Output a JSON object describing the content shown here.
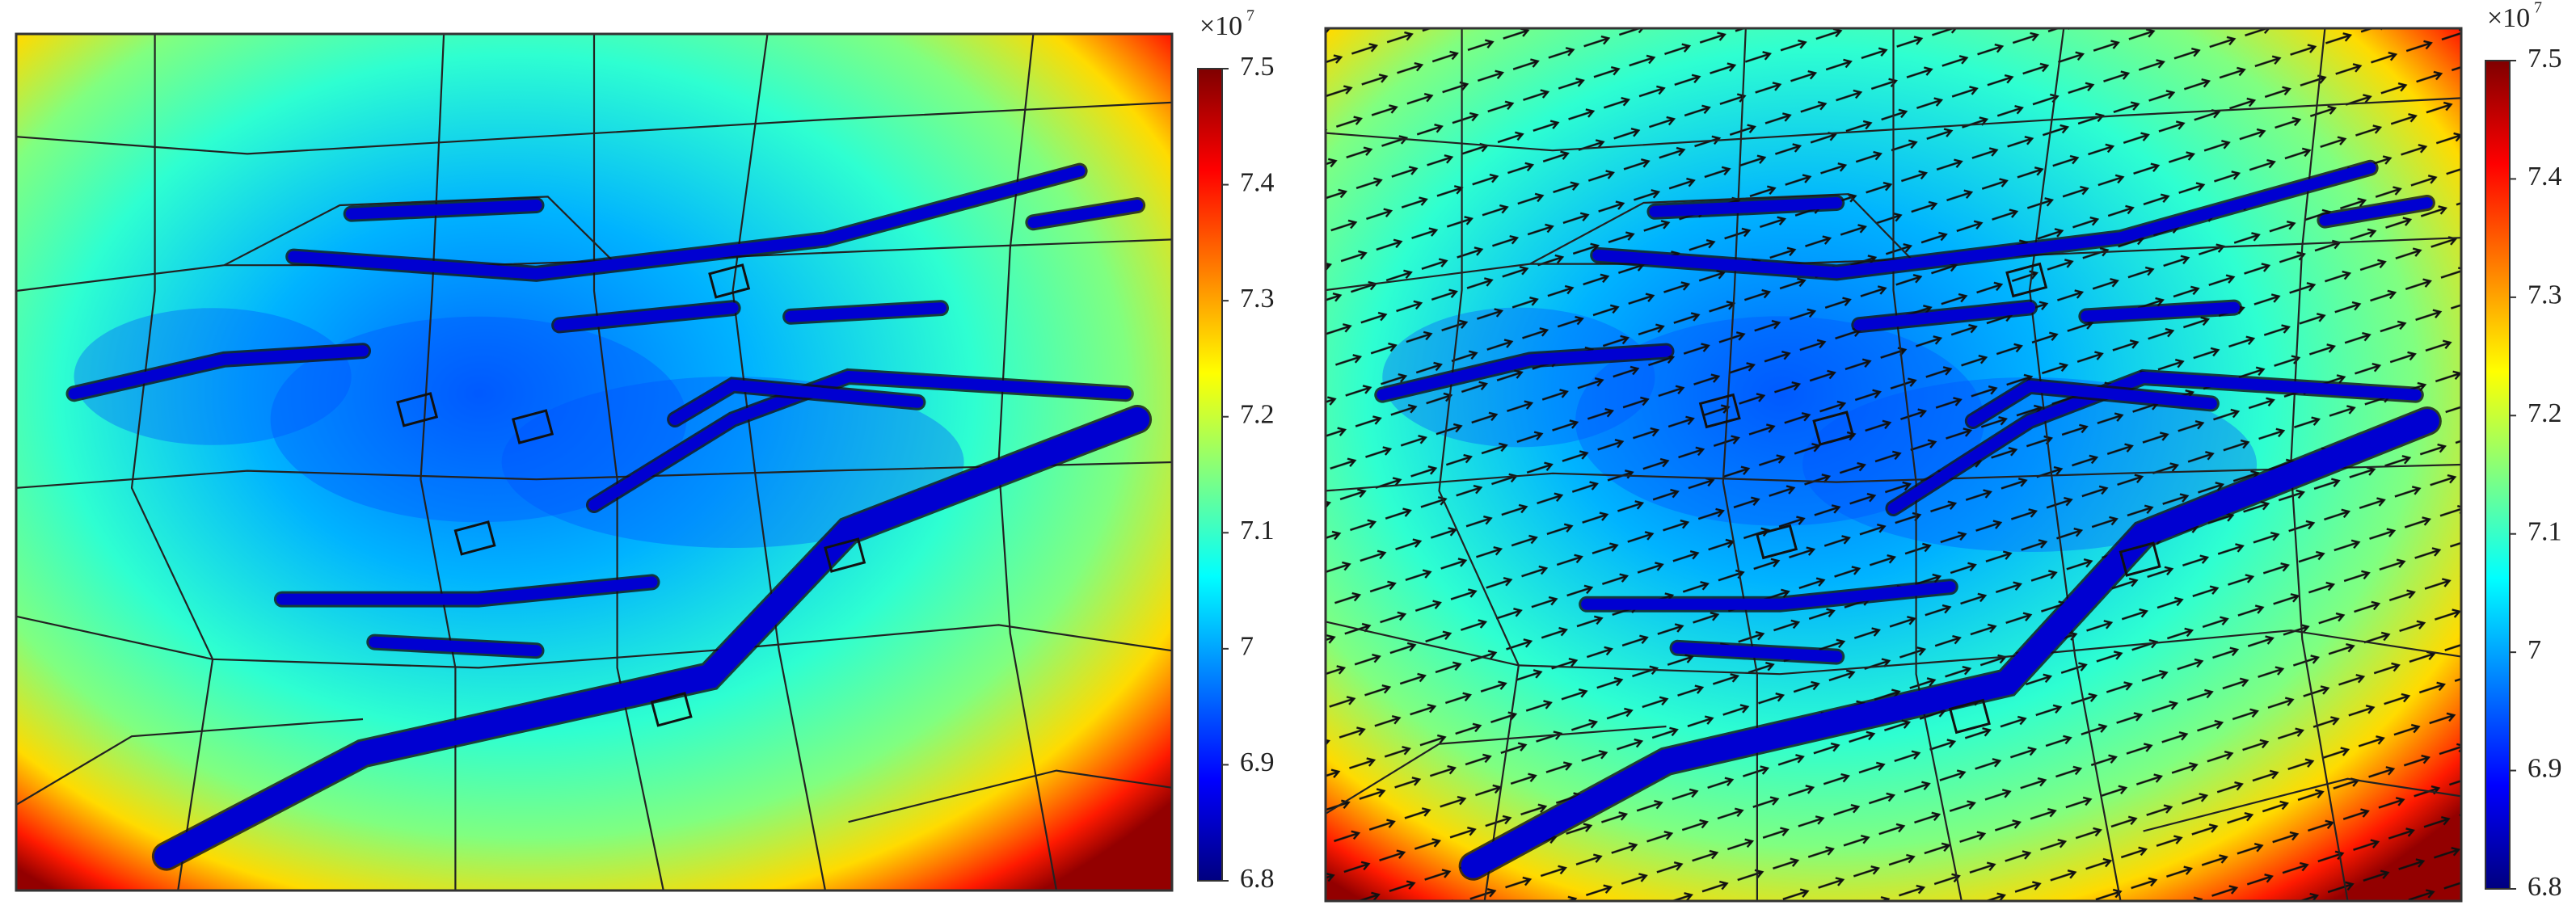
{
  "chart_data": [
    {
      "type": "heatmap",
      "arrows": false,
      "colormap": [
        "#00007f",
        "#0000ff",
        "#0080ff",
        "#00ffff",
        "#80ff80",
        "#ffff00",
        "#ff8000",
        "#ff0000",
        "#7f0000"
      ],
      "colorbar": {
        "zlim": [
          6.8,
          7.5
        ],
        "zticks": [
          6.8,
          6.9,
          7,
          7.1,
          7.2,
          7.3,
          7.4,
          7.5
        ],
        "multiplier_base": "×10",
        "multiplier_exponent": "7"
      }
    },
    {
      "type": "heatmap",
      "arrows": true,
      "colormap": [
        "#00007f",
        "#0000ff",
        "#0080ff",
        "#00ffff",
        "#80ff80",
        "#ffff00",
        "#ff8000",
        "#ff0000",
        "#7f0000"
      ],
      "colorbar": {
        "zlim": [
          6.8,
          7.5
        ],
        "zticks": [
          6.8,
          6.9,
          7,
          7.1,
          7.2,
          7.3,
          7.4,
          7.5
        ],
        "multiplier_base": "×10",
        "multiplier_exponent": "7"
      }
    }
  ]
}
